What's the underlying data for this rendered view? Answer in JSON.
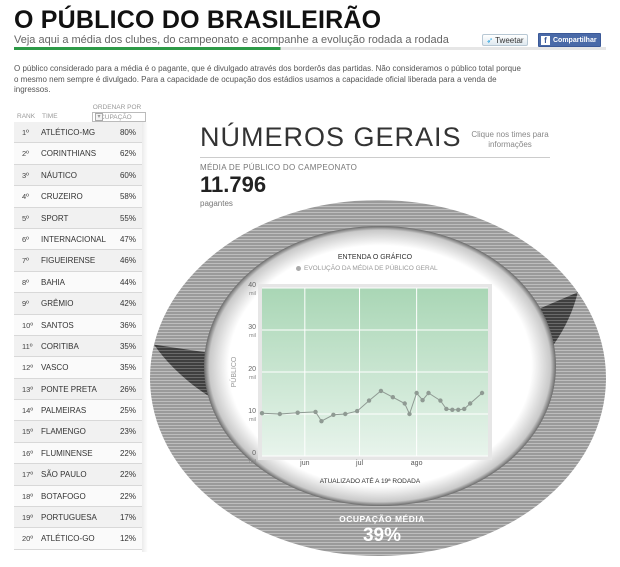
{
  "header": {
    "title": "O PÚBLICO DO BRASILEIRÃO",
    "subtitle": "Veja aqui a média dos clubes, do campeonato e acompanhe a evolução rodada a rodada",
    "tweet_label": "Tweetar",
    "share_label": "Compartilhar"
  },
  "intro": {
    "text": "O público considerado para a média é o pagante, que é divulgado através dos borderôs das partidas. Não consideramos o público total porque o mesmo nem sempre é divulgado. Para a capacidade de ocupação dos estádios usamos a capacidade oficial liberada para a venda de ingressos."
  },
  "ranking": {
    "col_rank": "RANK",
    "col_team": "TIME",
    "order_label": "ORDENAR POR",
    "order_value": "OCUPAÇÃO",
    "rows": [
      {
        "pos": "1º",
        "team": "ATLÉTICO-MG",
        "pct": "80%"
      },
      {
        "pos": "2º",
        "team": "CORINTHIANS",
        "pct": "62%"
      },
      {
        "pos": "3º",
        "team": "NÁUTICO",
        "pct": "60%"
      },
      {
        "pos": "4º",
        "team": "CRUZEIRO",
        "pct": "58%"
      },
      {
        "pos": "5º",
        "team": "SPORT",
        "pct": "55%"
      },
      {
        "pos": "6º",
        "team": "INTERNACIONAL",
        "pct": "47%"
      },
      {
        "pos": "7º",
        "team": "FIGUEIRENSE",
        "pct": "46%"
      },
      {
        "pos": "8º",
        "team": "BAHIA",
        "pct": "44%"
      },
      {
        "pos": "9º",
        "team": "GRÊMIO",
        "pct": "42%"
      },
      {
        "pos": "10º",
        "team": "SANTOS",
        "pct": "36%"
      },
      {
        "pos": "11º",
        "team": "CORITIBA",
        "pct": "35%"
      },
      {
        "pos": "12º",
        "team": "VASCO",
        "pct": "35%"
      },
      {
        "pos": "13º",
        "team": "PONTE PRETA",
        "pct": "26%"
      },
      {
        "pos": "14º",
        "team": "PALMEIRAS",
        "pct": "25%"
      },
      {
        "pos": "15º",
        "team": "FLAMENGO",
        "pct": "23%"
      },
      {
        "pos": "16º",
        "team": "FLUMINENSE",
        "pct": "22%"
      },
      {
        "pos": "17º",
        "team": "SÃO PAULO",
        "pct": "22%"
      },
      {
        "pos": "18º",
        "team": "BOTAFOGO",
        "pct": "22%"
      },
      {
        "pos": "19º",
        "team": "PORTUGUESA",
        "pct": "17%"
      },
      {
        "pos": "20º",
        "team": "ATLÉTICO-GO",
        "pct": "12%"
      }
    ]
  },
  "summary": {
    "heading": "NÚMEROS GERAIS",
    "hint": "Clique nos times para informações",
    "avg_label": "MÉDIA DE PÚBLICO DO CAMPEONATO",
    "avg_value": "11.796",
    "avg_unit": "pagantes",
    "occupancy_label": "OCUPAÇÃO MÉDIA",
    "occupancy_value": "39%",
    "occupancy_fraction": 0.39,
    "chart_help": "ENTENDA O GRÁFICO",
    "legend_item": "EVOLUÇÃO DA MÉDIA DE PÚBLICO GERAL",
    "updated": "ATUALIZADO ATÉ A 19ª RODADA"
  },
  "colors": {
    "accent_green": "#2d9a47",
    "ring_light": "#8c8c8c",
    "ring_dark": "#4a4a4a",
    "chart_fill_top": "#a9d6b5",
    "chart_fill_bottom": "#e8f4ec"
  },
  "chart_data": {
    "type": "line",
    "ylabel": "PÚBLICO",
    "ylim": [
      0,
      40
    ],
    "yticks": [
      0,
      10,
      20,
      30,
      40
    ],
    "ytick_labels": [
      "0",
      "10",
      "20",
      "30",
      "40"
    ],
    "ytick_unit": "mil",
    "xlim": [
      0,
      19
    ],
    "xtick_positions": [
      3.6,
      8.2,
      13.0
    ],
    "xtick_labels": [
      "jun",
      "jul",
      "ago"
    ],
    "x": [
      0,
      1.5,
      3,
      4.5,
      5,
      6,
      7,
      8,
      9,
      10,
      11,
      12,
      12.4,
      13,
      13.5,
      14,
      15,
      15.5,
      16,
      16.5,
      17,
      17.5,
      18.5
    ],
    "values": [
      10.2,
      10.0,
      10.3,
      10.5,
      8.3,
      9.8,
      10.0,
      10.7,
      13.2,
      15.5,
      14.0,
      12.5,
      10.0,
      15.0,
      13.3,
      15.0,
      13.2,
      11.2,
      11.0,
      11.0,
      11.2,
      12.5,
      15.0
    ],
    "series": [
      {
        "name": "EVOLUÇÃO DA MÉDIA DE PÚBLICO GERAL"
      }
    ]
  }
}
